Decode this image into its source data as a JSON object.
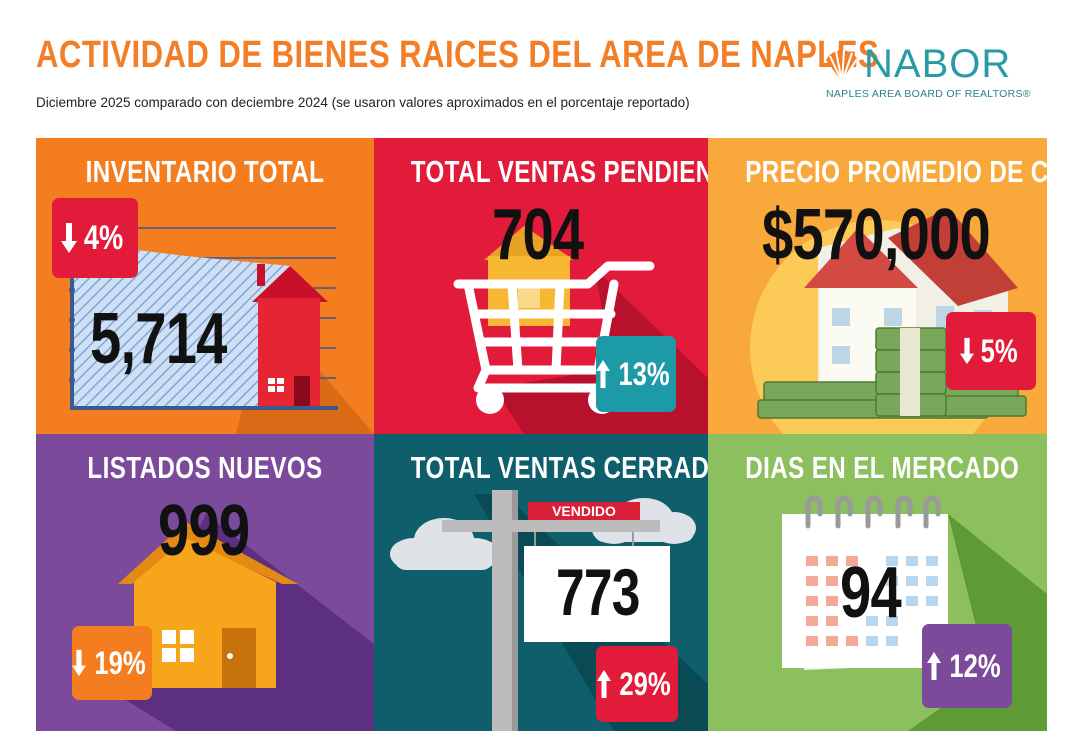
{
  "header": {
    "title": "ACTIVIDAD DE BIENES RAICES DEL AREA DE NAPLES",
    "subtitle": "Diciembre 2025 comparado con deciembre 2024 (se usaron valores aproximados en el porcentaje reportado)"
  },
  "logo": {
    "name": "NABOR",
    "tagline": "NAPLES AREA BOARD OF REALTORS®"
  },
  "tiles": {
    "inventory": {
      "title": "INVENTARIO TOTAL",
      "value": "5,714",
      "change": "4%",
      "direction": "down",
      "icon": "house-chart-icon"
    },
    "pending": {
      "title": "TOTAL VENTAS PENDIENTES",
      "value": "704",
      "change": "13%",
      "direction": "up",
      "icon": "shopping-cart-house-icon"
    },
    "price": {
      "title": "PRECIO PROMEDIO DE CIERRE",
      "value": "$570,000",
      "change": "5%",
      "direction": "down",
      "icon": "house-money-icon"
    },
    "new_listings": {
      "title": "LISTADOS NUEVOS",
      "value": "999",
      "change": "19%",
      "direction": "down",
      "icon": "house-icon"
    },
    "closed": {
      "title": "TOTAL VENTAS CERRADAS",
      "value": "773",
      "change": "29%",
      "direction": "up",
      "sign_label": "VENDIDO",
      "icon": "sold-sign-icon"
    },
    "days": {
      "title": "DIAS EN EL MERCADO",
      "value": "94",
      "change": "12%",
      "direction": "up",
      "icon": "calendar-icon"
    }
  },
  "colors": {
    "orange": "#f47d20",
    "red": "#e31b3b",
    "yellow": "#f9a93b",
    "purple": "#7b4a9b",
    "teal": "#0e5f6b",
    "green": "#8cbf5d",
    "title_orange": "#f37e28",
    "logo_teal": "#2a9aa5"
  }
}
